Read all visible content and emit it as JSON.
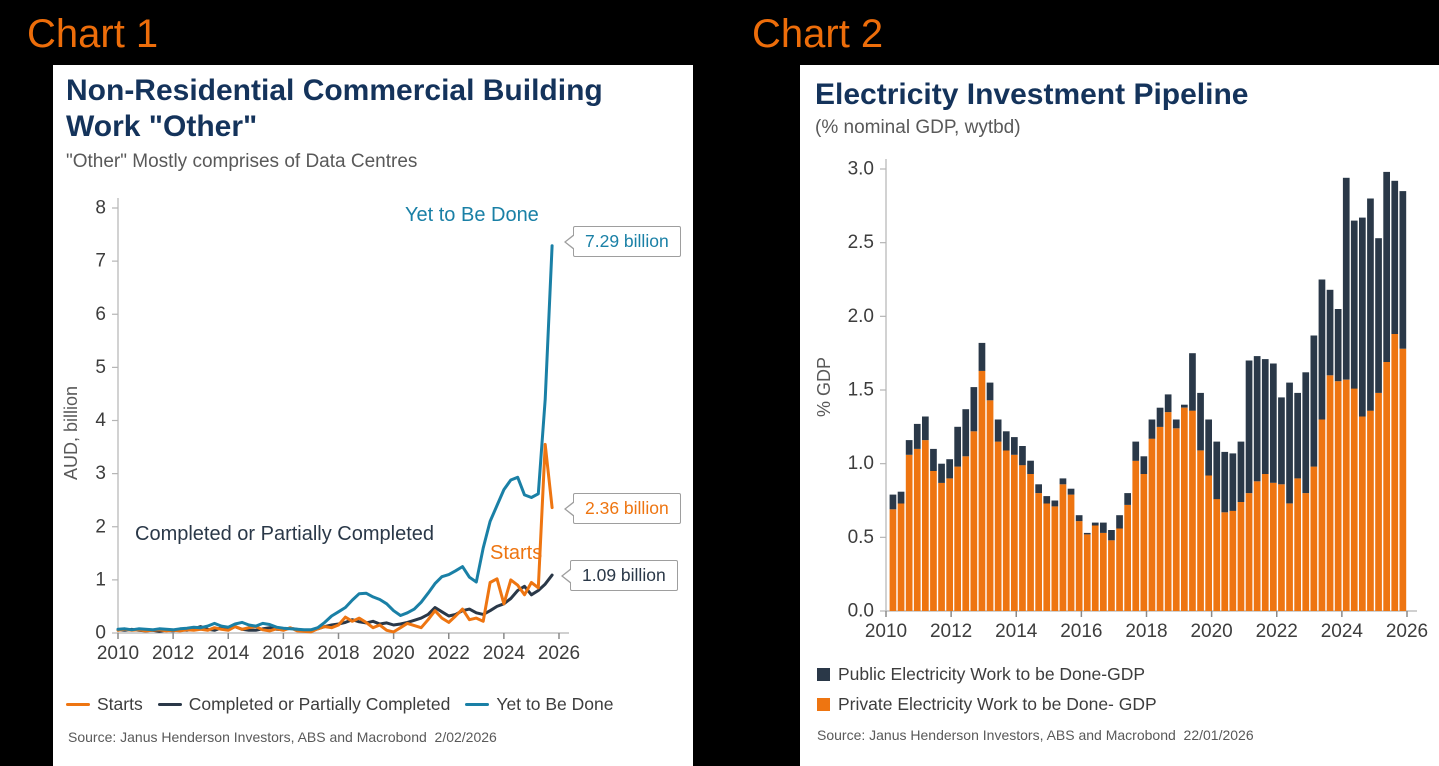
{
  "page": {
    "chart1_label": "Chart 1",
    "chart2_label": "Chart 2"
  },
  "colors": {
    "tag_orange": "#ED6D0A",
    "orange": "#EE7511",
    "navy": "#2A3848",
    "teal": "#1A80A6",
    "title_navy": "#14335B",
    "axis_gray": "#B5B5B5",
    "tick_text": "#3D3D3D",
    "muted_text": "#595959"
  },
  "chart1": {
    "title": "Non-Residential Commercial Building Work \"Other\"",
    "subtitle": "\"Other\" Mostly comprises of Data Centres",
    "ylabel": "AUD, billion",
    "annotations": {
      "yet_to_be_done": {
        "text": "Yet to Be Done",
        "color": "#1A80A6"
      },
      "completed": {
        "text": "Completed or Partially Completed",
        "color": "#2A3848"
      },
      "starts": {
        "text": "Starts",
        "color": "#EE7511"
      }
    },
    "callouts": [
      {
        "text": "7.29 billion",
        "color": "#1A80A6"
      },
      {
        "text": "2.36 billion",
        "color": "#EE7511"
      },
      {
        "text": "1.09 billion",
        "color": "#2A3848"
      }
    ],
    "legend": [
      {
        "label": "Starts",
        "color": "#EE7511"
      },
      {
        "label": "Completed or Partially Completed",
        "color": "#2A3848"
      },
      {
        "label": "Yet to Be Done",
        "color": "#1A80A6"
      }
    ],
    "source": "Source: Janus Henderson Investors, ABS and Macrobond  2/02/2026"
  },
  "chart2": {
    "title": "Electricity Investment Pipeline",
    "subtitle": "(% nominal GDP, wytbd)",
    "ylabel": "% GDP",
    "legend": [
      {
        "label": "Public Electricity Work to be Done-GDP",
        "color": "#2A3848"
      },
      {
        "label": "Private Electricity Work to be Done- GDP",
        "color": "#EE7511"
      }
    ],
    "source": "Source: Janus Henderson Investors, ABS and Macrobond  22/01/2026"
  },
  "chart_data": [
    {
      "type": "line",
      "title": "Non-Residential Commercial Building Work \"Other\"",
      "subtitle": "\"Other\" Mostly comprises of Data Centres",
      "ylabel": "AUD, billion",
      "ylim": [
        0,
        8
      ],
      "xlim": [
        2010,
        2026
      ],
      "grid": false,
      "legend_position": "bottom",
      "x_start": 2010.0,
      "x_step": 0.25,
      "x_ticks": [
        2010,
        2012,
        2014,
        2016,
        2018,
        2020,
        2022,
        2024,
        2026
      ],
      "y_ticks": [
        0,
        1,
        2,
        3,
        4,
        5,
        6,
        7,
        8
      ],
      "series": [
        {
          "name": "Completed or Partially Completed",
          "color": "#2A3848",
          "end_label": "1.09 billion",
          "values": [
            0.06,
            0.05,
            0.07,
            0.05,
            0.04,
            0.05,
            0.03,
            0.05,
            0.04,
            0.06,
            0.05,
            0.08,
            0.12,
            0.07,
            0.05,
            0.1,
            0.09,
            0.12,
            0.07,
            0.05,
            0.05,
            0.08,
            0.1,
            0.07,
            0.06,
            0.09,
            0.07,
            0.05,
            0.05,
            0.08,
            0.12,
            0.15,
            0.17,
            0.2,
            0.25,
            0.21,
            0.19,
            0.22,
            0.17,
            0.19,
            0.15,
            0.17,
            0.2,
            0.24,
            0.28,
            0.35,
            0.48,
            0.4,
            0.32,
            0.35,
            0.42,
            0.45,
            0.38,
            0.35,
            0.42,
            0.5,
            0.55,
            0.65,
            0.8,
            0.88,
            0.72,
            0.8,
            0.92,
            1.09
          ]
        },
        {
          "name": "Starts",
          "color": "#EE7511",
          "end_label": "2.36 billion",
          "values": [
            0.05,
            0.07,
            0.05,
            0.06,
            0.04,
            0.05,
            0.06,
            0.04,
            0.05,
            0.04,
            0.06,
            0.05,
            0.07,
            0.05,
            0.1,
            0.07,
            0.05,
            0.12,
            0.07,
            0.1,
            0.12,
            0.06,
            0.04,
            0.08,
            0.05,
            0.1,
            0.04,
            0.03,
            0.02,
            0.08,
            0.12,
            0.1,
            0.15,
            0.3,
            0.22,
            0.28,
            0.2,
            0.1,
            0.15,
            0.05,
            0.02,
            0.1,
            0.18,
            0.14,
            0.1,
            0.25,
            0.42,
            0.28,
            0.2,
            0.32,
            0.45,
            0.25,
            0.28,
            0.22,
            0.95,
            1.02,
            0.55,
            1.0,
            0.9,
            0.72,
            0.95,
            0.85,
            3.55,
            2.36
          ]
        },
        {
          "name": "Yet to Be Done",
          "color": "#1A80A6",
          "end_label": "7.29 billion",
          "values": [
            0.07,
            0.08,
            0.06,
            0.08,
            0.07,
            0.06,
            0.08,
            0.07,
            0.06,
            0.08,
            0.09,
            0.11,
            0.1,
            0.13,
            0.18,
            0.13,
            0.11,
            0.17,
            0.2,
            0.15,
            0.13,
            0.18,
            0.16,
            0.11,
            0.09,
            0.08,
            0.07,
            0.06,
            0.06,
            0.1,
            0.2,
            0.32,
            0.4,
            0.48,
            0.62,
            0.74,
            0.75,
            0.68,
            0.63,
            0.55,
            0.42,
            0.33,
            0.38,
            0.45,
            0.58,
            0.75,
            0.93,
            1.06,
            1.1,
            1.17,
            1.25,
            1.05,
            0.96,
            1.6,
            2.1,
            2.4,
            2.7,
            2.88,
            2.93,
            2.6,
            2.55,
            2.62,
            4.4,
            7.29
          ]
        }
      ]
    },
    {
      "type": "stacked-bar",
      "title": "Electricity Investment Pipeline",
      "subtitle": "(% nominal GDP, wytbd)",
      "ylabel": "% GDP",
      "ylim": [
        0,
        3
      ],
      "xlim": [
        2010,
        2026
      ],
      "grid": false,
      "legend_position": "bottom",
      "x_start": 2010.0,
      "x_step": 0.25,
      "x_ticks": [
        2010,
        2012,
        2014,
        2016,
        2018,
        2020,
        2022,
        2024,
        2026
      ],
      "y_ticks": [
        "0.0",
        "0.5",
        "1.0",
        "1.5",
        "2.0",
        "2.5",
        "3.0"
      ],
      "series": [
        {
          "name": "Private Electricity Work to be Done- GDP",
          "color": "#EE7511",
          "values": [
            0.69,
            0.73,
            1.06,
            1.1,
            1.16,
            0.95,
            0.87,
            0.9,
            0.98,
            1.05,
            1.22,
            1.63,
            1.43,
            1.15,
            1.09,
            1.06,
            0.99,
            0.93,
            0.8,
            0.73,
            0.71,
            0.86,
            0.79,
            0.61,
            0.52,
            0.58,
            0.53,
            0.48,
            0.56,
            0.72,
            1.02,
            0.93,
            1.17,
            1.25,
            1.35,
            1.24,
            1.38,
            1.36,
            1.09,
            0.92,
            0.76,
            0.67,
            0.68,
            0.74,
            0.8,
            0.88,
            0.93,
            0.87,
            0.86,
            0.73,
            0.9,
            0.8,
            0.98,
            1.3,
            1.6,
            1.56,
            1.57,
            1.51,
            1.32,
            1.36,
            1.48,
            1.69,
            1.88,
            1.78
          ]
        },
        {
          "name": "Public Electricity Work to be Done-GDP",
          "color": "#2A3848",
          "values": [
            0.1,
            0.08,
            0.1,
            0.17,
            0.16,
            0.15,
            0.13,
            0.13,
            0.27,
            0.32,
            0.3,
            0.19,
            0.12,
            0.15,
            0.13,
            0.12,
            0.13,
            0.09,
            0.06,
            0.05,
            0.04,
            0.04,
            0.04,
            0.04,
            0.01,
            0.02,
            0.07,
            0.07,
            0.09,
            0.08,
            0.13,
            0.12,
            0.13,
            0.13,
            0.12,
            0.06,
            0.02,
            0.39,
            0.39,
            0.38,
            0.39,
            0.41,
            0.39,
            0.41,
            0.9,
            0.85,
            0.78,
            0.81,
            0.59,
            0.82,
            0.58,
            0.82,
            0.89,
            0.95,
            0.58,
            0.49,
            1.37,
            1.14,
            1.35,
            1.44,
            1.05,
            1.29,
            1.04,
            1.07
          ]
        }
      ]
    }
  ]
}
